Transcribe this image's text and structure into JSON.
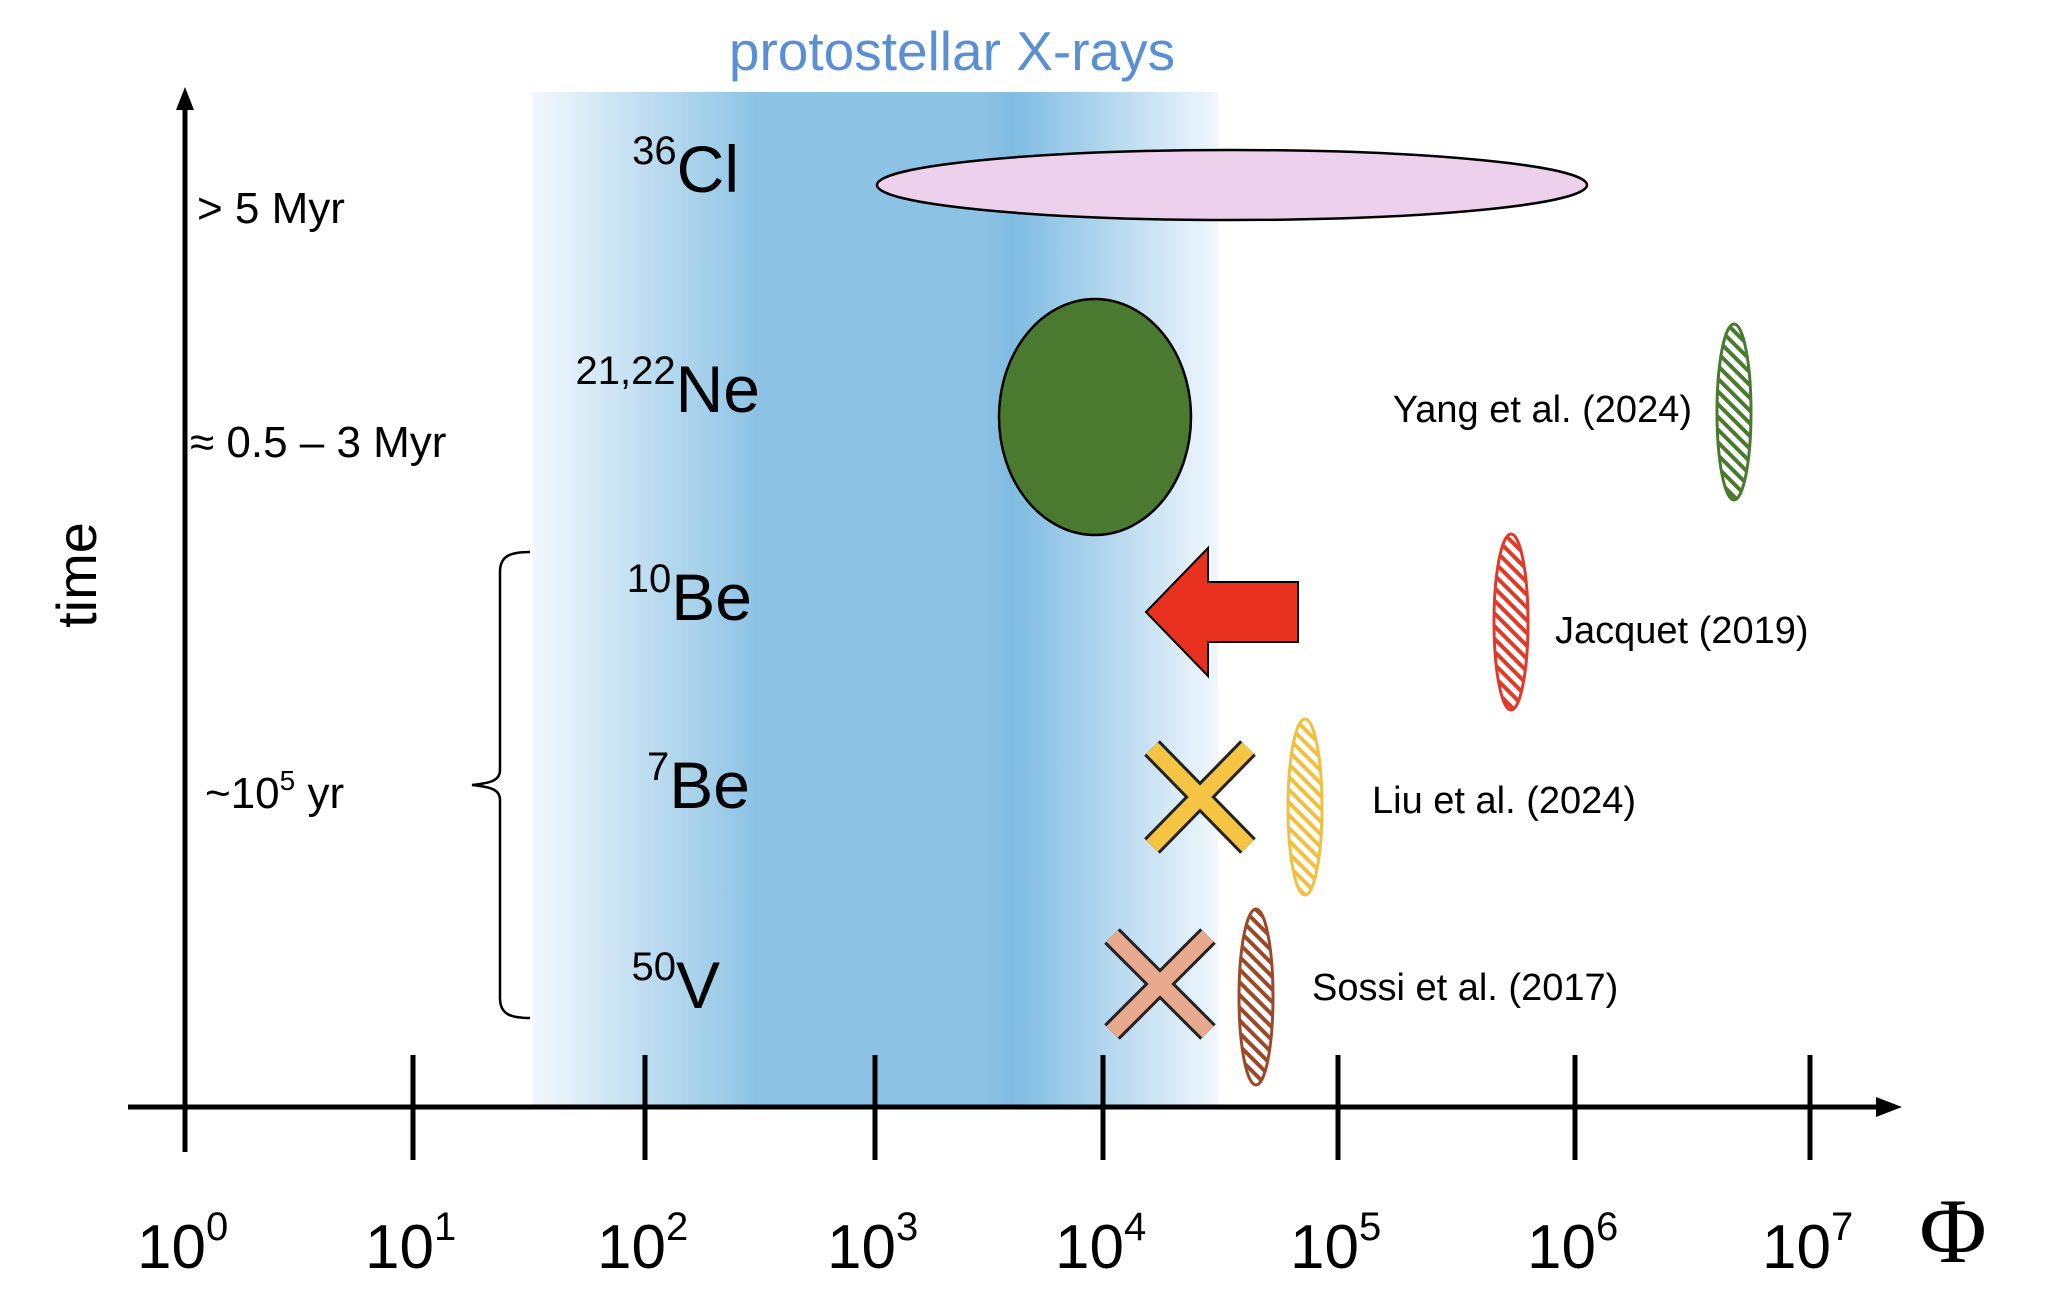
{
  "band": {
    "title": "protostellar X-rays",
    "title_color": "#5b8fd4",
    "colors": [
      "#f2f8fc",
      "#9ccbe8",
      "#8cc2e4",
      "#8cc2e4",
      "#7fbbe2",
      "#f0f7fc"
    ]
  },
  "axes": {
    "y_label": "time",
    "x_label": "Φ",
    "x_ticks": [
      {
        "base": "10",
        "exp": "0"
      },
      {
        "base": "10",
        "exp": "1"
      },
      {
        "base": "10",
        "exp": "2"
      },
      {
        "base": "10",
        "exp": "3"
      },
      {
        "base": "10",
        "exp": "4"
      },
      {
        "base": "10",
        "exp": "5"
      },
      {
        "base": "10",
        "exp": "6"
      },
      {
        "base": "10",
        "exp": "7"
      }
    ]
  },
  "time_labels": {
    "t1": "> 5 Myr",
    "t2": "≈ 0.5 – 3 Myr",
    "t3_prefix": "~10",
    "t3_exp": "5",
    "t3_suffix": " yr"
  },
  "isotopes": [
    {
      "mass": "36",
      "element": "Cl"
    },
    {
      "mass": "21,22",
      "element": "Ne"
    },
    {
      "mass": "10",
      "element": "Be"
    },
    {
      "mass": "7",
      "element": "Be"
    },
    {
      "mass": "50",
      "element": "V"
    }
  ],
  "references": [
    {
      "label": "Yang et al. (2024)",
      "color": "#4a7a2f"
    },
    {
      "label": "Jacquet (2019)",
      "color": "#e03a2a"
    },
    {
      "label": "Liu et al. (2024)",
      "color": "#f0c040"
    },
    {
      "label": "Sossi et al. (2017)",
      "color": "#9a4a2a"
    }
  ],
  "marker_colors": {
    "cl36": "#ecd0ec",
    "ne": "#4a7a2f",
    "arrow": "#e8321f",
    "x_be7": "#f5c443",
    "x_v50": "#e8a88e"
  }
}
